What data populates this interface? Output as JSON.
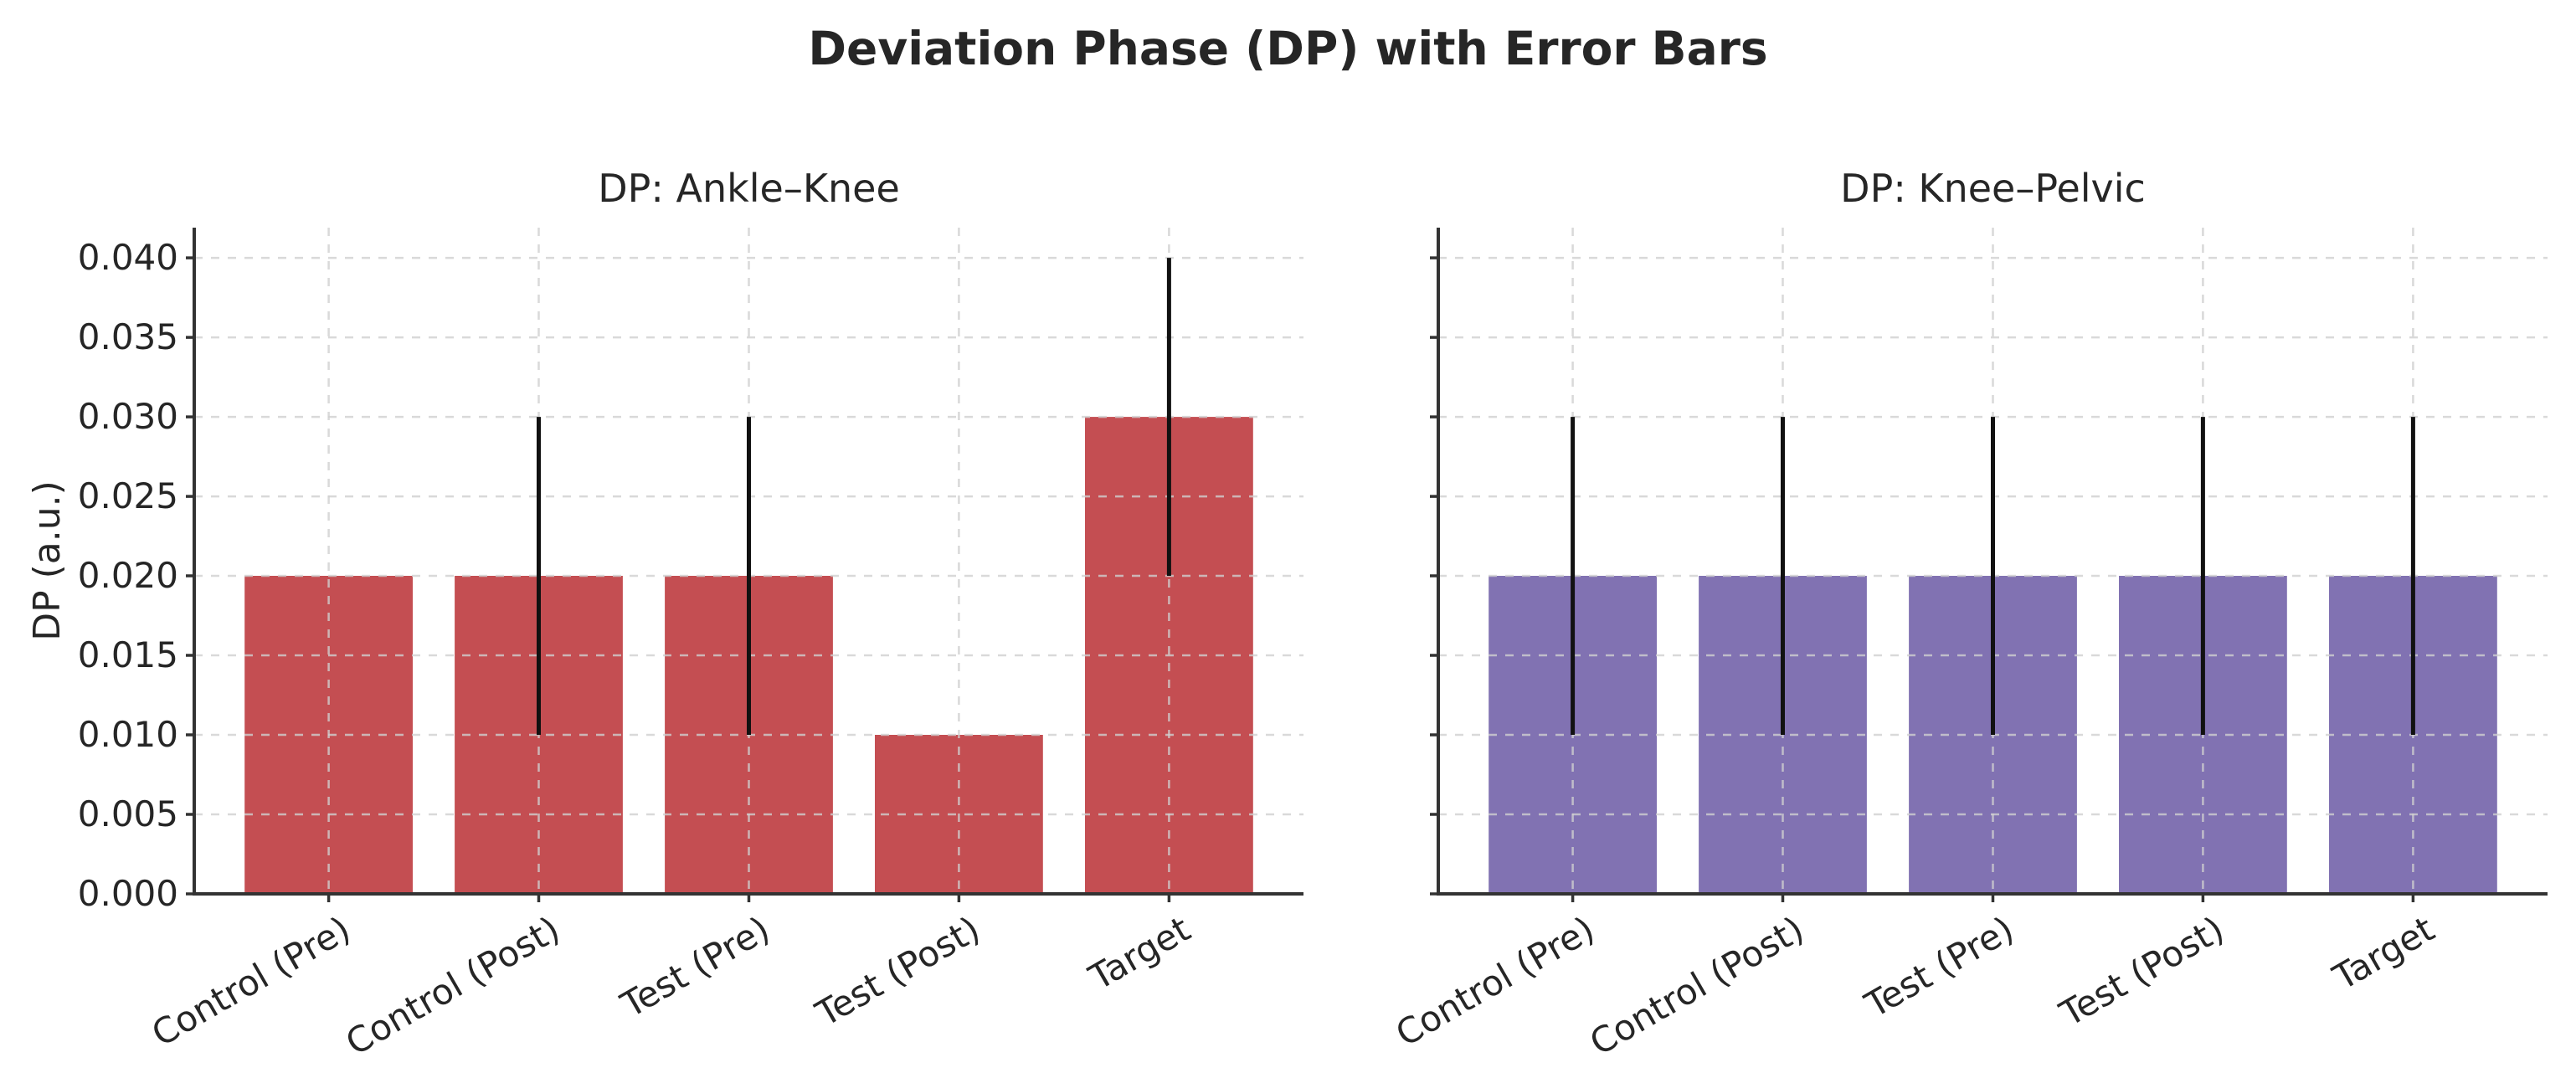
{
  "suptitle": "Deviation Phase (DP) with Error Bars",
  "chart_data": [
    {
      "type": "bar",
      "title": "DP: Ankle–Knee",
      "ylabel": "DP (a.u.)",
      "categories": [
        "Control (Pre)",
        "Control (Post)",
        "Test (Pre)",
        "Test (Post)",
        "Target"
      ],
      "values": [
        0.02,
        0.02,
        0.02,
        0.01,
        0.03
      ],
      "errors": [
        0,
        0.01,
        0.01,
        0,
        0.01
      ],
      "bar_color": "#c44e52",
      "error_color": "#111111",
      "ylim": [
        0.0,
        0.0419
      ],
      "y_ticks": [
        0.0,
        0.005,
        0.01,
        0.015,
        0.02,
        0.025,
        0.03,
        0.035,
        0.04
      ],
      "y_tick_labels": [
        "0.000",
        "0.005",
        "0.010",
        "0.015",
        "0.020",
        "0.025",
        "0.030",
        "0.035",
        "0.040"
      ],
      "grid": true,
      "legend": "none"
    },
    {
      "type": "bar",
      "title": "DP: Knee–Pelvic",
      "ylabel": "",
      "categories": [
        "Control (Pre)",
        "Control (Post)",
        "Test (Pre)",
        "Test (Post)",
        "Target"
      ],
      "values": [
        0.02,
        0.02,
        0.02,
        0.02,
        0.02
      ],
      "errors": [
        0.01,
        0.01,
        0.01,
        0.01,
        0.01
      ],
      "bar_color": "#8172b2",
      "error_color": "#111111",
      "ylim": [
        0.0,
        0.0419
      ],
      "y_ticks": [
        0.0,
        0.005,
        0.01,
        0.015,
        0.02,
        0.025,
        0.03,
        0.035,
        0.04
      ],
      "y_tick_labels": [
        "0.000",
        "0.005",
        "0.010",
        "0.015",
        "0.020",
        "0.025",
        "0.030",
        "0.035",
        "0.040"
      ],
      "grid": true,
      "legend": "none"
    }
  ]
}
